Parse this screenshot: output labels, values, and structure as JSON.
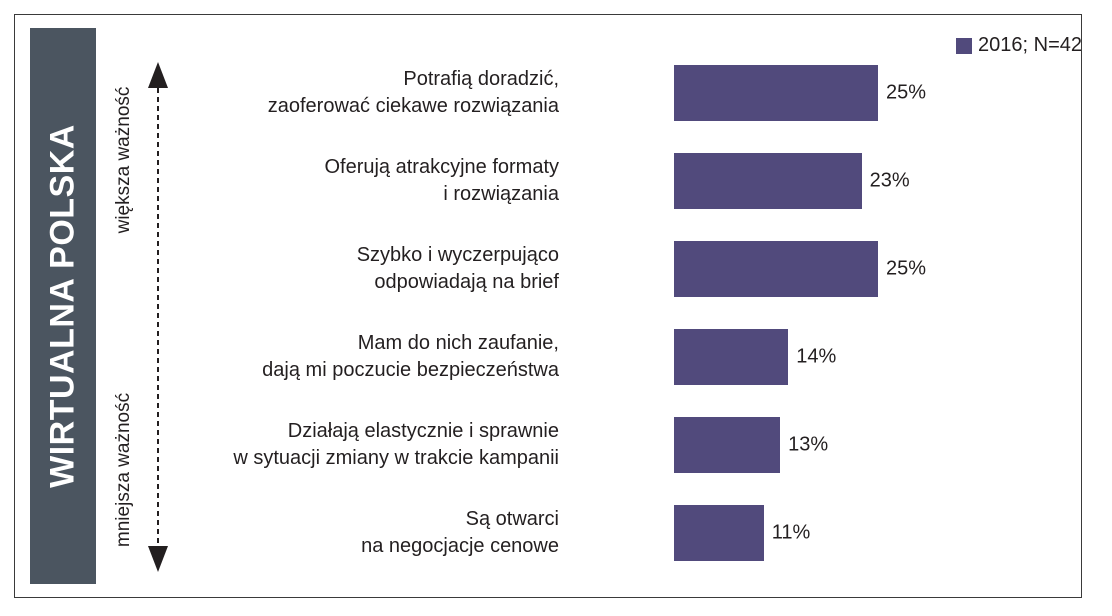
{
  "sidebar": {
    "title": "WIRTUALNA POLSKA"
  },
  "axis": {
    "top_label": "większa ważność",
    "bottom_label": "mniejsza ważność"
  },
  "colors": {
    "bar": "#514a7c",
    "band": "#4b5560"
  },
  "chart_data": {
    "type": "bar",
    "orientation": "horizontal",
    "categories": [
      [
        "Potrafią doradzić,",
        "zaoferować ciekawe rozwiązania"
      ],
      [
        "Oferują atrakcyjne formaty",
        "i rozwiązania"
      ],
      [
        "Szybko i wyczerpująco",
        "odpowiadają na brief"
      ],
      [
        "Mam do nich zaufanie,",
        "dają mi poczucie bezpieczeństwa"
      ],
      [
        "Działają elastycznie i sprawnie",
        "w sytuacji zmiany w trakcie kampanii"
      ],
      [
        "Są otwarci",
        "na negocjacje cenowe"
      ]
    ],
    "series": [
      {
        "name": "2016; N=42",
        "values": [
          25,
          23,
          25,
          14,
          13,
          11
        ],
        "labels": [
          "25%",
          "23%",
          "25%",
          "14%",
          "13%",
          "11%"
        ]
      }
    ],
    "legend": "top-right",
    "grid": false
  }
}
